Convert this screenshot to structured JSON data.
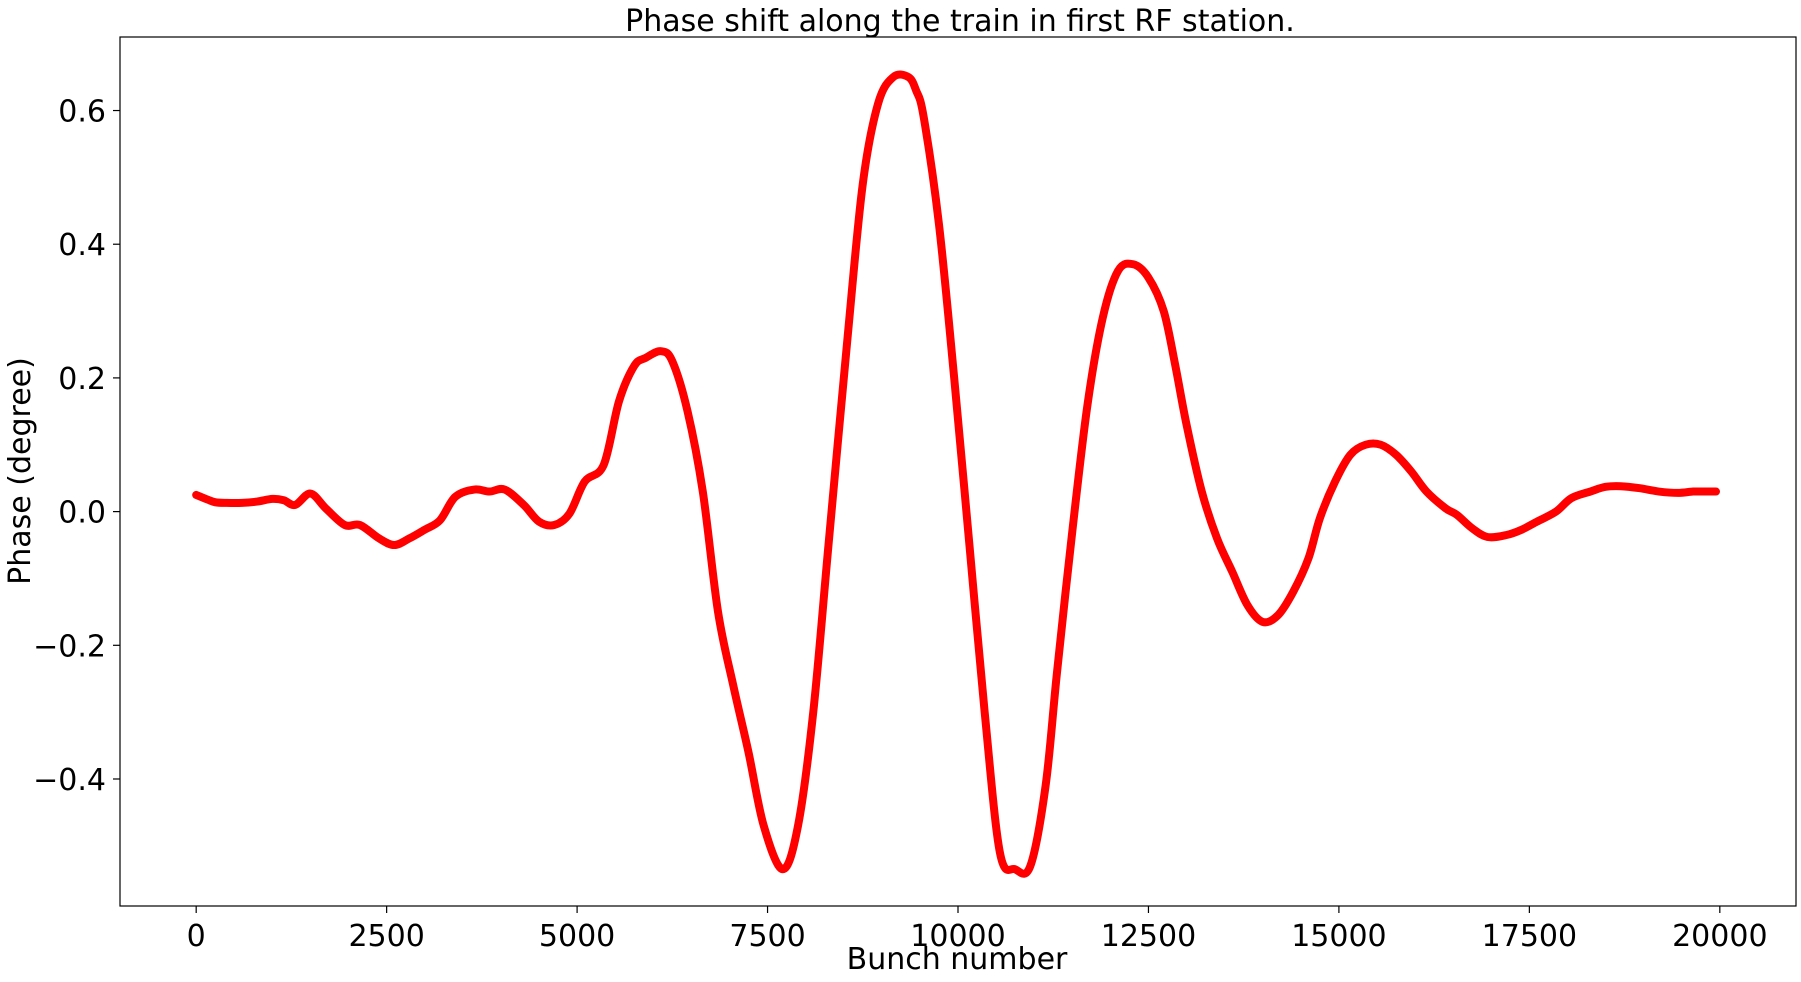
{
  "chart_data": {
    "type": "line",
    "title": "Phase shift along the train in first RF station.",
    "xlabel": "Bunch number",
    "ylabel": "Phase (degree)",
    "xlim": [
      -1000,
      21000
    ],
    "ylim": [
      -0.59,
      0.71
    ],
    "xticks": [
      0,
      2500,
      5000,
      7500,
      10000,
      12500,
      15000,
      17500,
      20000
    ],
    "xtick_labels": [
      "0",
      "2500",
      "5000",
      "7500",
      "10000",
      "12500",
      "15000",
      "17500",
      "20000"
    ],
    "yticks": [
      -0.4,
      -0.2,
      0.0,
      0.2,
      0.4,
      0.6
    ],
    "ytick_labels": [
      "−0.4",
      "−0.2",
      "0.0",
      "0.2",
      "0.4",
      "0.6"
    ],
    "grid": false,
    "series": [
      {
        "color": "#ff0000",
        "x": [
          0,
          150,
          250,
          400,
          600,
          800,
          1000,
          1150,
          1300,
          1500,
          1700,
          1950,
          2150,
          2400,
          2600,
          2800,
          3000,
          3200,
          3400,
          3650,
          3850,
          4050,
          4300,
          4500,
          4700,
          4900,
          5100,
          5350,
          5550,
          5750,
          5900,
          6100,
          6250,
          6450,
          6650,
          6850,
          7050,
          7250,
          7450,
          7700,
          7900,
          8100,
          8300,
          8550,
          8750,
          8950,
          9150,
          9350,
          9450,
          9550,
          9750,
          9950,
          10150,
          10350,
          10550,
          10750,
          10950,
          11150,
          11300,
          11500,
          11700,
          11900,
          12100,
          12300,
          12500,
          12700,
          12850,
          13000,
          13200,
          13400,
          13600,
          13800,
          14000,
          14200,
          14400,
          14600,
          14750,
          14950,
          15150,
          15350,
          15550,
          15750,
          15950,
          16150,
          16400,
          16550,
          16750,
          16950,
          17200,
          17400,
          17600,
          17850,
          18050,
          18300,
          18500,
          18700,
          18950,
          19200,
          19450,
          19650,
          19800,
          19950
        ],
        "y": [
          0.025,
          0.018,
          0.014,
          0.013,
          0.013,
          0.015,
          0.019,
          0.017,
          0.01,
          0.027,
          0.005,
          -0.02,
          -0.02,
          -0.04,
          -0.05,
          -0.04,
          -0.027,
          -0.013,
          0.022,
          0.033,
          0.03,
          0.033,
          0.01,
          -0.015,
          -0.02,
          -0.003,
          0.045,
          0.07,
          0.165,
          0.218,
          0.23,
          0.24,
          0.225,
          0.15,
          0.03,
          -0.15,
          -0.26,
          -0.36,
          -0.47,
          -0.535,
          -0.47,
          -0.3,
          -0.05,
          0.26,
          0.49,
          0.61,
          0.65,
          0.65,
          0.63,
          0.59,
          0.43,
          0.2,
          -0.05,
          -0.3,
          -0.51,
          -0.535,
          -0.53,
          -0.41,
          -0.24,
          -0.03,
          0.16,
          0.29,
          0.36,
          0.37,
          0.35,
          0.3,
          0.22,
          0.13,
          0.03,
          -0.04,
          -0.09,
          -0.14,
          -0.165,
          -0.155,
          -0.12,
          -0.07,
          -0.01,
          0.045,
          0.085,
          0.1,
          0.1,
          0.085,
          0.06,
          0.03,
          0.005,
          -0.005,
          -0.025,
          -0.038,
          -0.035,
          -0.027,
          -0.015,
          0.0,
          0.02,
          0.03,
          0.037,
          0.038,
          0.035,
          0.03,
          0.028,
          0.03,
          0.03,
          0.03
        ]
      }
    ]
  }
}
